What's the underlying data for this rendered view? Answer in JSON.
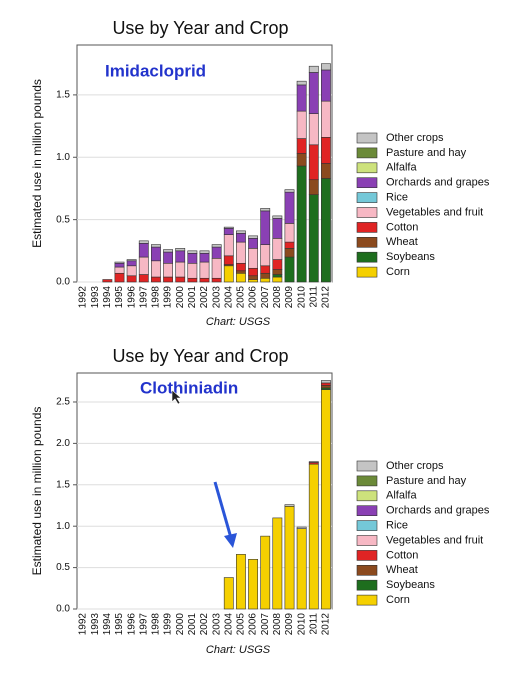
{
  "chart_data": [
    {
      "type": "bar",
      "stacked": true,
      "title": "Use by Year and Crop",
      "annotation": "Imidacloprid",
      "ylabel": "Estimated use in million pounds",
      "source": "Chart: USGS",
      "grid": true,
      "categories": [
        "1992",
        "1993",
        "1994",
        "1995",
        "1996",
        "1997",
        "1998",
        "1999",
        "2000",
        "2001",
        "2002",
        "2003",
        "2004",
        "2005",
        "2006",
        "2007",
        "2008",
        "2009",
        "2010",
        "2011",
        "2012"
      ],
      "ylim": [
        0,
        1.9
      ],
      "yticks": [
        {
          "value": 0,
          "label": "0.0"
        },
        0.5,
        {
          "value": 1,
          "label": "1.0"
        },
        1.5
      ],
      "series": [
        {
          "name": "Corn",
          "color": "#f5d000",
          "values": [
            0,
            0,
            0,
            0,
            0,
            0,
            0,
            0,
            0,
            0,
            0,
            0,
            0.13,
            0.07,
            0.02,
            0.03,
            0.04,
            0,
            0,
            0,
            0
          ]
        },
        {
          "name": "Soybeans",
          "color": "#1e6e1e",
          "values": [
            0,
            0,
            0,
            0,
            0,
            0,
            0,
            0,
            0,
            0,
            0,
            0,
            0,
            0,
            0,
            0,
            0.02,
            0.2,
            0.93,
            0.7,
            0.83
          ]
        },
        {
          "name": "Wheat",
          "color": "#8b4a1e",
          "values": [
            0,
            0,
            0,
            0,
            0,
            0,
            0,
            0,
            0,
            0,
            0,
            0,
            0.01,
            0.02,
            0.03,
            0.04,
            0.04,
            0.07,
            0.1,
            0.12,
            0.12
          ]
        },
        {
          "name": "Cotton",
          "color": "#e02424",
          "values": [
            0,
            0,
            0.02,
            0.07,
            0.05,
            0.06,
            0.04,
            0.04,
            0.04,
            0.03,
            0.03,
            0.03,
            0.07,
            0.06,
            0.06,
            0.06,
            0.08,
            0.05,
            0.12,
            0.28,
            0.21
          ]
        },
        {
          "name": "Vegetables and fruit",
          "color": "#f7b8c4",
          "values": [
            0,
            0,
            0,
            0.05,
            0.08,
            0.14,
            0.13,
            0.11,
            0.12,
            0.12,
            0.13,
            0.16,
            0.17,
            0.17,
            0.16,
            0.17,
            0.17,
            0.15,
            0.22,
            0.25,
            0.29
          ]
        },
        {
          "name": "Rice",
          "color": "#74c8d8",
          "values": [
            0,
            0,
            0,
            0,
            0,
            0,
            0,
            0,
            0,
            0,
            0,
            0,
            0,
            0,
            0,
            0,
            0,
            0,
            0,
            0,
            0
          ]
        },
        {
          "name": "Orchards and grapes",
          "color": "#8a40b4",
          "values": [
            0,
            0,
            0,
            0.03,
            0.04,
            0.11,
            0.11,
            0.09,
            0.09,
            0.08,
            0.07,
            0.09,
            0.05,
            0.07,
            0.08,
            0.27,
            0.16,
            0.25,
            0.21,
            0.33,
            0.25
          ]
        },
        {
          "name": "Alfalfa",
          "color": "#cde27c",
          "values": [
            0,
            0,
            0,
            0,
            0,
            0,
            0,
            0,
            0,
            0,
            0,
            0,
            0,
            0,
            0,
            0,
            0,
            0,
            0,
            0,
            0
          ]
        },
        {
          "name": "Pasture and hay",
          "color": "#6b8a38",
          "values": [
            0,
            0,
            0,
            0,
            0,
            0,
            0,
            0,
            0,
            0,
            0,
            0,
            0,
            0,
            0,
            0,
            0,
            0,
            0,
            0,
            0
          ]
        },
        {
          "name": "Other crops",
          "color": "#c4c4c4",
          "values": [
            0,
            0,
            0,
            0.01,
            0.01,
            0.02,
            0.02,
            0.02,
            0.02,
            0.02,
            0.02,
            0.02,
            0.01,
            0.02,
            0.02,
            0.02,
            0.02,
            0.02,
            0.03,
            0.05,
            0.05
          ]
        }
      ]
    },
    {
      "type": "bar",
      "stacked": true,
      "title": "Use by Year and Crop",
      "annotation": "Clothiniadin",
      "ylabel": "Estimated use in million pounds",
      "source": "Chart: USGS",
      "grid": true,
      "categories": [
        "1992",
        "1993",
        "1994",
        "1995",
        "1996",
        "1997",
        "1998",
        "1999",
        "2000",
        "2001",
        "2002",
        "2003",
        "2004",
        "2005",
        "2006",
        "2007",
        "2008",
        "2009",
        "2010",
        "2011",
        "2012"
      ],
      "ylim": [
        0,
        2.85
      ],
      "yticks": [
        {
          "value": 0,
          "label": "0.0"
        },
        0.5,
        {
          "value": 1,
          "label": "1.0"
        },
        1.5,
        {
          "value": 2,
          "label": "2.0"
        },
        2.5
      ],
      "series": [
        {
          "name": "Corn",
          "color": "#f5d000",
          "values": [
            0,
            0,
            0,
            0,
            0,
            0,
            0,
            0,
            0,
            0,
            0,
            0,
            0.38,
            0.66,
            0.6,
            0.88,
            1.1,
            1.24,
            0.97,
            1.75,
            2.65
          ]
        },
        {
          "name": "Soybeans",
          "color": "#1e6e1e",
          "values": [
            0,
            0,
            0,
            0,
            0,
            0,
            0,
            0,
            0,
            0,
            0,
            0,
            0,
            0,
            0,
            0,
            0,
            0,
            0,
            0,
            0.02
          ]
        },
        {
          "name": "Wheat",
          "color": "#8b4a1e",
          "values": [
            0,
            0,
            0,
            0,
            0,
            0,
            0,
            0,
            0,
            0,
            0,
            0,
            0,
            0,
            0,
            0,
            0,
            0,
            0,
            0,
            0.03
          ]
        },
        {
          "name": "Cotton",
          "color": "#e02424",
          "values": [
            0,
            0,
            0,
            0,
            0,
            0,
            0,
            0,
            0,
            0,
            0,
            0,
            0,
            0,
            0,
            0,
            0,
            0,
            0,
            0.02,
            0.03
          ]
        },
        {
          "name": "Vegetables and fruit",
          "color": "#f7b8c4",
          "values": [
            0,
            0,
            0,
            0,
            0,
            0,
            0,
            0,
            0,
            0,
            0,
            0,
            0,
            0,
            0,
            0,
            0,
            0,
            0,
            0,
            0
          ]
        },
        {
          "name": "Rice",
          "color": "#74c8d8",
          "values": [
            0,
            0,
            0,
            0,
            0,
            0,
            0,
            0,
            0,
            0,
            0,
            0,
            0,
            0,
            0,
            0,
            0,
            0,
            0,
            0,
            0
          ]
        },
        {
          "name": "Orchards and grapes",
          "color": "#8a40b4",
          "values": [
            0,
            0,
            0,
            0,
            0,
            0,
            0,
            0,
            0,
            0,
            0,
            0,
            0,
            0,
            0,
            0,
            0,
            0,
            0,
            0,
            0
          ]
        },
        {
          "name": "Alfalfa",
          "color": "#cde27c",
          "values": [
            0,
            0,
            0,
            0,
            0,
            0,
            0,
            0,
            0,
            0,
            0,
            0,
            0,
            0,
            0,
            0,
            0,
            0,
            0,
            0,
            0
          ]
        },
        {
          "name": "Pasture and hay",
          "color": "#6b8a38",
          "values": [
            0,
            0,
            0,
            0,
            0,
            0,
            0,
            0,
            0,
            0,
            0,
            0,
            0,
            0,
            0,
            0,
            0,
            0,
            0,
            0,
            0
          ]
        },
        {
          "name": "Other crops",
          "color": "#c4c4c4",
          "values": [
            0,
            0,
            0,
            0,
            0,
            0,
            0,
            0,
            0,
            0,
            0,
            0,
            0,
            0,
            0,
            0,
            0,
            0.02,
            0.02,
            0.01,
            0.03
          ]
        }
      ]
    }
  ]
}
